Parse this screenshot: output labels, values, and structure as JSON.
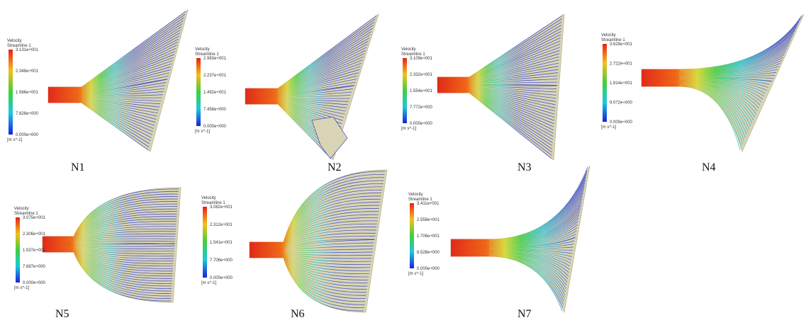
{
  "panels": [
    {
      "label": "N1",
      "legend": {
        "title": "Velocity",
        "subtitle": "Streamline 1",
        "ticks": [
          "3.131e+001",
          "2.348e+001",
          "1.566e+001",
          "7.828e+000",
          "0.000e+000"
        ],
        "unit": "[m s^-1]"
      }
    },
    {
      "label": "N2",
      "legend": {
        "title": "Velocity",
        "subtitle": "Streamline 1",
        "ticks": [
          "2.983e+001",
          "2.237e+001",
          "1.492e+001",
          "7.458e+000",
          "0.000e+000"
        ],
        "unit": "[m s^-1]"
      }
    },
    {
      "label": "N3",
      "legend": {
        "title": "Velocity",
        "subtitle": "Streamline 1",
        "ticks": [
          "3.109e+001",
          "2.332e+001",
          "1.554e+001",
          "7.772e+000",
          "0.000e+000"
        ],
        "unit": "[m s^-1]"
      }
    },
    {
      "label": "N4",
      "legend": {
        "title": "Velocity",
        "subtitle": "Streamline 1",
        "ticks": [
          "3.629e+001",
          "2.722e+001",
          "1.814e+001",
          "9.072e+000",
          "0.000e+000"
        ],
        "unit": "[m s^-1]"
      }
    },
    {
      "label": "N5",
      "legend": {
        "title": "Velocity",
        "subtitle": "Streamline 1",
        "ticks": [
          "3.075e+001",
          "2.306e+001",
          "1.537e+001",
          "7.687e+000",
          "0.000e+000"
        ],
        "unit": "[m s^-1]"
      }
    },
    {
      "label": "N6",
      "legend": {
        "title": "Velocity",
        "subtitle": "Streamline 1",
        "ticks": [
          "3.082e+001",
          "2.312e+001",
          "1.541e+001",
          "7.706e+000",
          "0.000e+000"
        ],
        "unit": "[m s^-1]"
      }
    },
    {
      "label": "N7",
      "legend": {
        "title": "Velocity",
        "subtitle": "Streamline 1",
        "ticks": [
          "3.411e+001",
          "2.558e+001",
          "1.706e+001",
          "8.528e+000",
          "0.000e+000"
        ],
        "unit": "[m s^-1]"
      }
    }
  ]
}
